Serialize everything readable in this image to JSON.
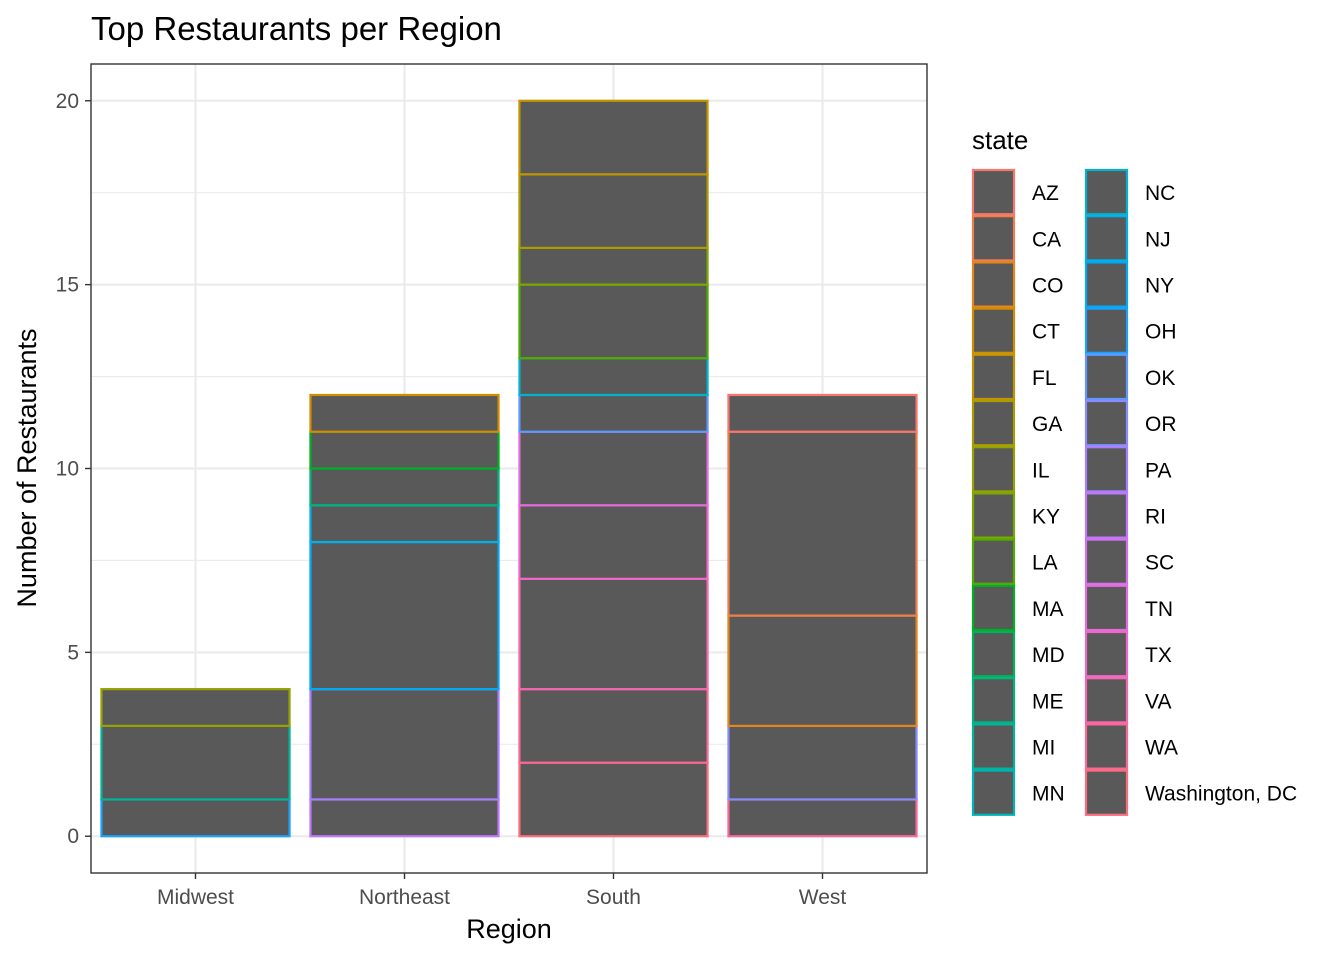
{
  "chart_data": {
    "type": "bar",
    "stacked": true,
    "title": "Top Restaurants per Region",
    "xlabel": "Region",
    "ylabel": "Number of Restaurants",
    "ylim": [
      -1,
      21
    ],
    "yticks": [
      0,
      5,
      10,
      15,
      20
    ],
    "grid": true,
    "legend_position": "right",
    "bar_fill": "#595959",
    "categories": [
      "Midwest",
      "Northeast",
      "South",
      "West"
    ],
    "legend": {
      "title": "state",
      "entries": [
        {
          "label": "AZ",
          "color": "#F8766D"
        },
        {
          "label": "CA",
          "color": "#F07E4C"
        },
        {
          "label": "CO",
          "color": "#E3861C"
        },
        {
          "label": "CT",
          "color": "#D38E00"
        },
        {
          "label": "FL",
          "color": "#C19600"
        },
        {
          "label": "GA",
          "color": "#AC9C00"
        },
        {
          "label": "IL",
          "color": "#95A200"
        },
        {
          "label": "KY",
          "color": "#7AA800"
        },
        {
          "label": "LA",
          "color": "#52AC00"
        },
        {
          "label": "MA",
          "color": "#00B023"
        },
        {
          "label": "MD",
          "color": "#00B25A"
        },
        {
          "label": "ME",
          "color": "#00B47D"
        },
        {
          "label": "MI",
          "color": "#00B59B"
        },
        {
          "label": "MN",
          "color": "#00B5B6"
        },
        {
          "label": "NC",
          "color": "#00B3CF"
        },
        {
          "label": "NJ",
          "color": "#00B0E6"
        },
        {
          "label": "NY",
          "color": "#00AAF8"
        },
        {
          "label": "OH",
          "color": "#1AA2FF"
        },
        {
          "label": "OK",
          "color": "#5F98FF"
        },
        {
          "label": "OR",
          "color": "#878CFF"
        },
        {
          "label": "PA",
          "color": "#A67FFF"
        },
        {
          "label": "RI",
          "color": "#C077FC"
        },
        {
          "label": "SC",
          "color": "#D470EF"
        },
        {
          "label": "TN",
          "color": "#E36BDE"
        },
        {
          "label": "TX",
          "color": "#EF67C9"
        },
        {
          "label": "VA",
          "color": "#F766B1"
        },
        {
          "label": "WA",
          "color": "#FB6896"
        },
        {
          "label": "Washington, DC",
          "color": "#FC6C7B"
        }
      ]
    },
    "series": [
      {
        "name": "AZ",
        "values": [
          0,
          0,
          0,
          1
        ]
      },
      {
        "name": "CA",
        "values": [
          0,
          0,
          0,
          5
        ]
      },
      {
        "name": "CO",
        "values": [
          0,
          0,
          0,
          3
        ]
      },
      {
        "name": "CT",
        "values": [
          0,
          1,
          0,
          0
        ]
      },
      {
        "name": "FL",
        "values": [
          0,
          0,
          2,
          0
        ]
      },
      {
        "name": "GA",
        "values": [
          0,
          0,
          2,
          0
        ]
      },
      {
        "name": "IL",
        "values": [
          1,
          0,
          0,
          0
        ]
      },
      {
        "name": "KY",
        "values": [
          0,
          0,
          1,
          0
        ]
      },
      {
        "name": "LA",
        "values": [
          0,
          0,
          2,
          0
        ]
      },
      {
        "name": "MA",
        "values": [
          0,
          1,
          0,
          0
        ]
      },
      {
        "name": "MD",
        "values": [
          0,
          0,
          0,
          0
        ]
      },
      {
        "name": "ME",
        "values": [
          0,
          1,
          0,
          0
        ]
      },
      {
        "name": "MI",
        "values": [
          2,
          0,
          0,
          0
        ]
      },
      {
        "name": "MN",
        "values": [
          0,
          0,
          0,
          0
        ]
      },
      {
        "name": "NC",
        "values": [
          0,
          0,
          1,
          0
        ]
      },
      {
        "name": "NJ",
        "values": [
          0,
          1,
          0,
          0
        ]
      },
      {
        "name": "NY",
        "values": [
          0,
          4,
          0,
          0
        ]
      },
      {
        "name": "OH",
        "values": [
          1,
          0,
          0,
          0
        ]
      },
      {
        "name": "OK",
        "values": [
          0,
          0,
          1,
          0
        ]
      },
      {
        "name": "OR",
        "values": [
          0,
          0,
          0,
          2
        ]
      },
      {
        "name": "PA",
        "values": [
          0,
          3,
          0,
          0
        ]
      },
      {
        "name": "RI",
        "values": [
          0,
          1,
          0,
          0
        ]
      },
      {
        "name": "SC",
        "values": [
          0,
          0,
          0,
          0
        ]
      },
      {
        "name": "TN",
        "values": [
          0,
          0,
          2,
          0
        ]
      },
      {
        "name": "TX",
        "values": [
          0,
          0,
          2,
          0
        ]
      },
      {
        "name": "VA",
        "values": [
          0,
          0,
          3,
          0
        ]
      },
      {
        "name": "WA",
        "values": [
          0,
          0,
          2,
          1
        ]
      },
      {
        "name": "Washington, DC",
        "values": [
          0,
          0,
          2,
          0
        ]
      }
    ]
  }
}
